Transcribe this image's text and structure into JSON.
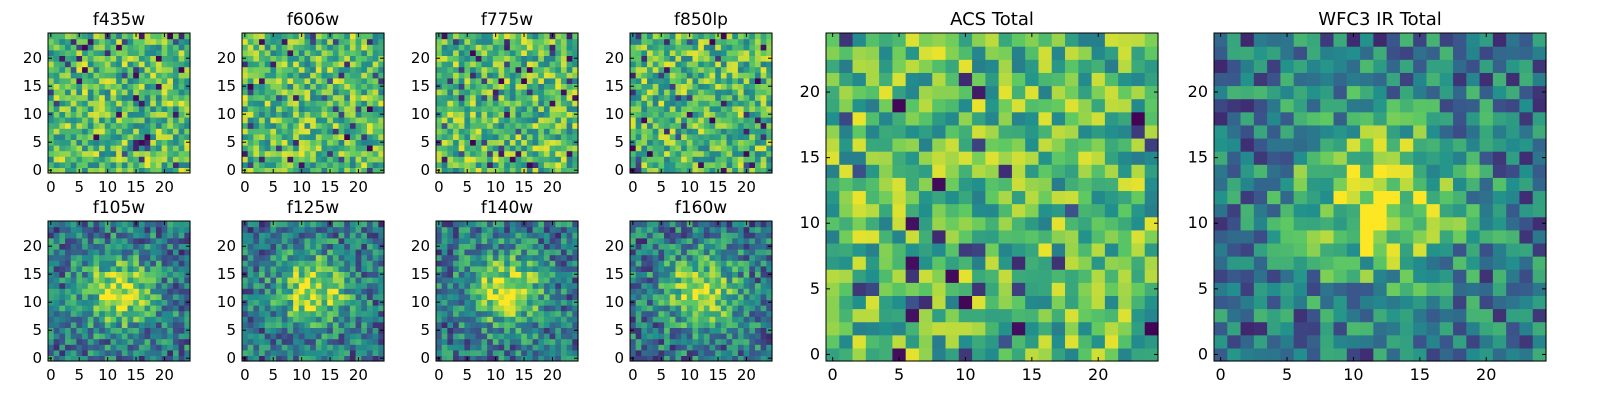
{
  "chart_data": [
    {
      "type": "heatmap",
      "title": "f435w",
      "grid_size": 25,
      "xlim": [
        0,
        25
      ],
      "ylim": [
        0,
        25
      ],
      "xticks": [
        0,
        5,
        10,
        15,
        20
      ],
      "yticks": [
        0,
        5,
        10,
        15,
        20
      ],
      "colormap": {
        "name": "viridis",
        "low": "#440154",
        "mid": "#21908d",
        "high": "#fde725"
      },
      "pattern": "noise",
      "grid": false,
      "values": []
    },
    {
      "type": "heatmap",
      "title": "f606w",
      "grid_size": 25,
      "xlim": [
        0,
        25
      ],
      "ylim": [
        0,
        25
      ],
      "xticks": [
        0,
        5,
        10,
        15,
        20
      ],
      "yticks": [
        0,
        5,
        10,
        15,
        20
      ],
      "colormap": {
        "name": "viridis",
        "low": "#440154",
        "mid": "#21908d",
        "high": "#fde725"
      },
      "pattern": "noise",
      "grid": false,
      "values": []
    },
    {
      "type": "heatmap",
      "title": "f775w",
      "grid_size": 25,
      "xlim": [
        0,
        25
      ],
      "ylim": [
        0,
        25
      ],
      "xticks": [
        0,
        5,
        10,
        15,
        20
      ],
      "yticks": [
        0,
        5,
        10,
        15,
        20
      ],
      "colormap": {
        "name": "viridis",
        "low": "#440154",
        "mid": "#21908d",
        "high": "#fde725"
      },
      "pattern": "noise",
      "grid": false,
      "values": []
    },
    {
      "type": "heatmap",
      "title": "f850lp",
      "grid_size": 25,
      "xlim": [
        0,
        25
      ],
      "ylim": [
        0,
        25
      ],
      "xticks": [
        0,
        5,
        10,
        15,
        20
      ],
      "yticks": [
        0,
        5,
        10,
        15,
        20
      ],
      "colormap": {
        "name": "viridis",
        "low": "#440154",
        "mid": "#21908d",
        "high": "#fde725"
      },
      "pattern": "noise",
      "grid": false,
      "values": []
    },
    {
      "type": "heatmap",
      "title": "f105w",
      "grid_size": 25,
      "xlim": [
        0,
        25
      ],
      "ylim": [
        0,
        25
      ],
      "xticks": [
        0,
        5,
        10,
        15,
        20
      ],
      "yticks": [
        0,
        5,
        10,
        15,
        20
      ],
      "colormap": {
        "name": "viridis",
        "low": "#440154",
        "mid": "#21908d",
        "high": "#fde725"
      },
      "pattern": "blob",
      "center": [
        12,
        12
      ],
      "grid": false,
      "values": []
    },
    {
      "type": "heatmap",
      "title": "f125w",
      "grid_size": 25,
      "xlim": [
        0,
        25
      ],
      "ylim": [
        0,
        25
      ],
      "xticks": [
        0,
        5,
        10,
        15,
        20
      ],
      "yticks": [
        0,
        5,
        10,
        15,
        20
      ],
      "colormap": {
        "name": "viridis",
        "low": "#440154",
        "mid": "#21908d",
        "high": "#fde725"
      },
      "pattern": "blob",
      "center": [
        12,
        12
      ],
      "grid": false,
      "values": []
    },
    {
      "type": "heatmap",
      "title": "f140w",
      "grid_size": 25,
      "xlim": [
        0,
        25
      ],
      "ylim": [
        0,
        25
      ],
      "xticks": [
        0,
        5,
        10,
        15,
        20
      ],
      "yticks": [
        0,
        5,
        10,
        15,
        20
      ],
      "colormap": {
        "name": "viridis",
        "low": "#440154",
        "mid": "#21908d",
        "high": "#fde725"
      },
      "pattern": "blob",
      "center": [
        12,
        12
      ],
      "grid": false,
      "values": []
    },
    {
      "type": "heatmap",
      "title": "f160w",
      "grid_size": 25,
      "xlim": [
        0,
        25
      ],
      "ylim": [
        0,
        25
      ],
      "xticks": [
        0,
        5,
        10,
        15,
        20
      ],
      "yticks": [
        0,
        5,
        10,
        15,
        20
      ],
      "colormap": {
        "name": "viridis",
        "low": "#440154",
        "mid": "#21908d",
        "high": "#fde725"
      },
      "pattern": "blob",
      "center": [
        12,
        12
      ],
      "grid": false,
      "values": []
    },
    {
      "type": "heatmap",
      "title": "ACS Total",
      "grid_size": 25,
      "xlim": [
        0,
        25
      ],
      "ylim": [
        0,
        25
      ],
      "xticks": [
        0,
        5,
        10,
        15,
        20
      ],
      "yticks": [
        0,
        5,
        10,
        15,
        20
      ],
      "colormap": {
        "name": "viridis",
        "low": "#440154",
        "mid": "#21908d",
        "high": "#fde725"
      },
      "pattern": "noise",
      "grid": false,
      "values": []
    },
    {
      "type": "heatmap",
      "title": "WFC3 IR Total",
      "grid_size": 25,
      "xlim": [
        0,
        25
      ],
      "ylim": [
        0,
        25
      ],
      "xticks": [
        0,
        5,
        10,
        15,
        20
      ],
      "yticks": [
        0,
        5,
        10,
        15,
        20
      ],
      "colormap": {
        "name": "viridis",
        "low": "#440154",
        "mid": "#21908d",
        "high": "#fde725"
      },
      "pattern": "blob",
      "center": [
        12,
        12
      ],
      "grid": false,
      "values": []
    }
  ]
}
